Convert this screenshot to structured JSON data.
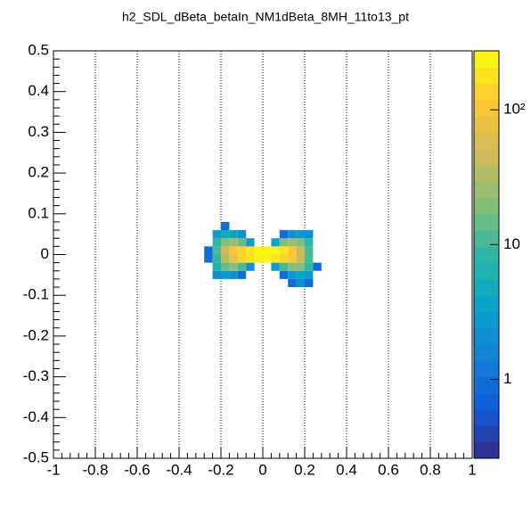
{
  "chart_data": {
    "type": "heatmap2d",
    "title": "h2_SDL_dBeta_betaIn_NM1dBeta_8MH_11to13_pt",
    "xlim": [
      -1,
      1
    ],
    "xticks": [
      -1,
      -0.8,
      -0.6,
      -0.4,
      -0.2,
      0,
      0.2,
      0.4,
      0.6,
      0.8,
      1
    ],
    "ylim": [
      -0.5,
      0.5
    ],
    "yticks": [
      -0.5,
      -0.4,
      -0.3,
      -0.2,
      -0.1,
      0,
      0.1,
      0.2,
      0.3,
      0.4,
      0.5
    ],
    "grid_x": true,
    "zlim": [
      0.26,
      274
    ],
    "zlog": true,
    "zticks": [
      1,
      10,
      {
        "value": 100,
        "label": "10²"
      }
    ],
    "palette": [
      "#352a87",
      "#0f5cdd",
      "#1481d6",
      "#06a4ca",
      "#2eb7a4",
      "#87bf77",
      "#d1bb59",
      "#fec832",
      "#f9fb0e"
    ],
    "xbins": [
      -0.28,
      -0.24,
      -0.2,
      -0.16,
      -0.12,
      -0.08,
      -0.04,
      0,
      0.04,
      0.08,
      0.12,
      0.16,
      0.2,
      0.24,
      0.28
    ],
    "ybins": [
      -0.08,
      -0.06,
      -0.04,
      -0.02,
      0,
      0.02,
      0.04,
      0.06,
      0.08
    ],
    "values": [
      [
        null,
        null,
        null,
        null,
        null,
        null,
        null,
        null,
        null,
        null,
        1,
        2,
        1,
        null
      ],
      [
        null,
        2,
        3,
        2,
        1,
        null,
        null,
        null,
        null,
        1,
        3,
        4,
        3,
        null
      ],
      [
        null,
        6,
        15,
        18,
        10,
        2,
        null,
        null,
        3,
        12,
        20,
        18,
        9,
        1
      ],
      [
        1,
        9,
        35,
        80,
        140,
        190,
        240,
        250,
        200,
        150,
        95,
        40,
        10,
        null
      ],
      [
        1,
        10,
        40,
        90,
        150,
        200,
        250,
        260,
        210,
        160,
        100,
        45,
        12,
        null
      ],
      [
        null,
        8,
        20,
        25,
        15,
        3,
        null,
        null,
        4,
        18,
        25,
        20,
        8,
        null
      ],
      [
        null,
        3,
        5,
        4,
        2,
        null,
        null,
        null,
        null,
        1,
        2,
        3,
        2,
        null
      ],
      [
        null,
        null,
        1,
        null,
        null,
        null,
        null,
        null,
        null,
        null,
        null,
        null,
        null,
        null
      ]
    ]
  }
}
